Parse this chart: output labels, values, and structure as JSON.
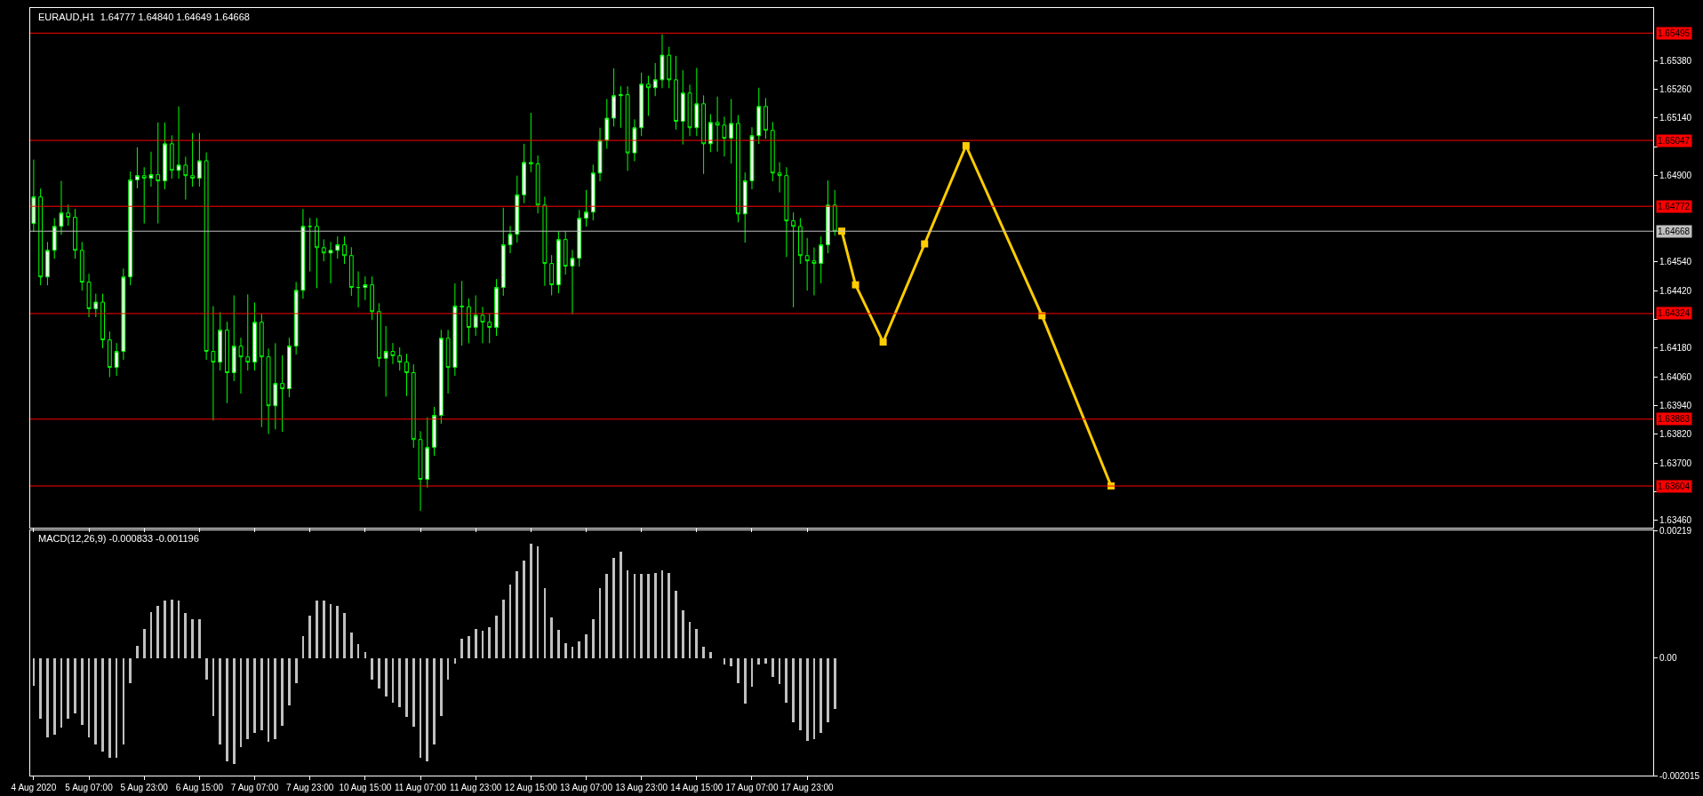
{
  "chart_data": [
    {
      "type": "candlestick",
      "title": "EURAUD,H1  1.64777 1.64840 1.64649 1.64668",
      "color": "#00ff00",
      "tick_labels": "y",
      "categories": [
        "4 Aug 2020",
        null,
        null,
        null,
        null,
        null,
        null,
        null,
        "5 Aug 07:00",
        null,
        null,
        null,
        null,
        null,
        null,
        null,
        "5 Aug 23:00",
        null,
        null,
        null,
        null,
        null,
        null,
        null,
        "6 Aug 15:00",
        null,
        null,
        null,
        null,
        null,
        null,
        null,
        "7 Aug 07:00",
        null,
        null,
        null,
        null,
        null,
        null,
        null,
        "7 Aug 23:00",
        null,
        null,
        null,
        null,
        null,
        null,
        null,
        "10 Aug 15:00",
        null,
        null,
        null,
        null,
        null,
        null,
        null,
        "11 Aug 07:00",
        null,
        null,
        null,
        null,
        null,
        null,
        null,
        "11 Aug 23:00",
        null,
        null,
        null,
        null,
        null,
        null,
        null,
        "12 Aug 15:00",
        null,
        null,
        null,
        null,
        null,
        null,
        null,
        "13 Aug 07:00",
        null,
        null,
        null,
        null,
        null,
        null,
        null,
        "13 Aug 23:00",
        null,
        null,
        null,
        null,
        null,
        null,
        null,
        "14 Aug 15:00",
        null,
        null,
        null,
        null,
        null,
        null,
        null,
        "17 Aug 07:00",
        null,
        null,
        null,
        null,
        null,
        null,
        null,
        "17 Aug 23:00",
        null,
        null,
        null,
        null,
        null,
        null,
        null,
        null,
        null,
        null,
        null,
        null,
        null,
        null,
        null,
        null,
        null,
        null,
        null,
        null,
        null,
        null,
        null,
        null,
        null,
        null,
        null,
        null,
        null,
        null,
        null,
        null,
        null,
        null,
        null,
        null,
        null,
        null,
        null,
        null,
        null,
        null,
        null,
        null,
        null,
        null,
        null,
        null,
        null,
        null,
        null,
        null,
        null,
        null,
        null,
        null,
        null,
        null,
        null,
        null,
        null,
        null,
        null,
        null,
        null,
        null,
        null,
        null,
        null,
        null,
        null,
        null,
        null,
        null,
        null,
        null,
        null,
        null,
        null,
        null,
        null,
        null,
        null,
        null,
        null,
        null,
        null,
        null,
        null,
        null,
        null,
        null,
        null,
        null,
        null,
        null,
        null,
        null,
        null,
        null,
        null,
        null,
        null,
        null,
        null,
        null,
        null,
        null,
        null,
        null,
        null,
        null,
        null,
        null,
        null,
        null,
        null,
        null,
        null,
        null,
        null,
        null
      ],
      "ylim": [
        1.6343,
        1.656
      ],
      "yticks": [
        {
          "value": 1.6538,
          "label": "1.65380"
        },
        {
          "value": 1.6526,
          "label": "1.65260"
        },
        {
          "value": 1.6514,
          "label": "1.65140"
        },
        {
          "value": 1.6502,
          "label": null
        },
        {
          "value": 1.649,
          "label": "1.64900"
        },
        {
          "value": 1.6454,
          "label": "1.64540"
        },
        {
          "value": 1.6442,
          "label": "1.64420"
        },
        {
          "value": 1.643,
          "label": null
        },
        {
          "value": 1.6418,
          "label": "1.64180"
        },
        {
          "value": 1.6406,
          "label": "1.64060"
        },
        {
          "value": 1.6394,
          "label": "1.63940"
        },
        {
          "value": 1.6382,
          "label": "1.63820"
        },
        {
          "value": 1.637,
          "label": "1.63700"
        },
        {
          "value": 1.6358,
          "label": null
        },
        {
          "value": 1.6346,
          "label": "1.63460"
        }
      ],
      "ohlc": [
        [
          1.647,
          1.64967,
          1.64665,
          1.64811
        ],
        [
          1.64811,
          1.64846,
          1.64442,
          1.64477
        ],
        [
          1.64477,
          1.64623,
          1.64442,
          1.64588
        ],
        [
          1.64588,
          1.64723,
          1.64553,
          1.64688
        ],
        [
          1.64688,
          1.64878,
          1.64653,
          1.64744
        ],
        [
          1.64744,
          1.64779,
          1.64691,
          1.64726
        ],
        [
          1.64726,
          1.64761,
          1.64553,
          1.64588
        ],
        [
          1.64588,
          1.64623,
          1.6442,
          1.64455
        ],
        [
          1.64455,
          1.6449,
          1.64309,
          1.64344
        ],
        [
          1.64344,
          1.64407,
          1.64309,
          1.64372
        ],
        [
          1.64372,
          1.64407,
          1.64179,
          1.64214
        ],
        [
          1.64214,
          1.64249,
          1.64059,
          1.64099
        ],
        [
          1.64099,
          1.64201,
          1.64064,
          1.64166
        ],
        [
          1.64166,
          1.64512,
          1.64131,
          1.64477
        ],
        [
          1.64477,
          1.64917,
          1.64442,
          1.64882
        ],
        [
          1.64882,
          1.65018,
          1.64847,
          1.649
        ],
        [
          1.649,
          1.64935,
          1.647,
          1.64889
        ],
        [
          1.64889,
          1.65,
          1.64854,
          1.64904
        ],
        [
          1.64904,
          1.65122,
          1.647,
          1.64878
        ],
        [
          1.64878,
          1.65122,
          1.64843,
          1.65033
        ],
        [
          1.65033,
          1.65068,
          1.64887,
          1.64922
        ],
        [
          1.64922,
          1.65189,
          1.64887,
          1.64944
        ],
        [
          1.64944,
          1.64979,
          1.648,
          1.649
        ],
        [
          1.649,
          1.65078,
          1.64854,
          1.64889
        ],
        [
          1.64889,
          1.65078,
          1.64854,
          1.64962
        ],
        [
          1.64962,
          1.64997,
          1.64131,
          1.64166
        ],
        [
          1.64166,
          1.64355,
          1.63877,
          1.64121
        ],
        [
          1.64121,
          1.6433,
          1.64086,
          1.64255
        ],
        [
          1.64255,
          1.6429,
          1.6395,
          1.64077
        ],
        [
          1.64077,
          1.644,
          1.64042,
          1.64188
        ],
        [
          1.64188,
          1.64223,
          1.6399,
          1.64143
        ],
        [
          1.64143,
          1.64404,
          1.64086,
          1.64121
        ],
        [
          1.64121,
          1.6437,
          1.64086,
          1.64288
        ],
        [
          1.64288,
          1.64323,
          1.6385,
          1.64143
        ],
        [
          1.64143,
          1.64178,
          1.63821,
          1.63939
        ],
        [
          1.63939,
          1.642,
          1.6384,
          1.64032
        ],
        [
          1.64032,
          1.6415,
          1.6383,
          1.6401
        ],
        [
          1.6401,
          1.64223,
          1.63975,
          1.64188
        ],
        [
          1.64188,
          1.64456,
          1.64153,
          1.64421
        ],
        [
          1.64421,
          1.6476,
          1.64386,
          1.64688
        ],
        [
          1.64688,
          1.64723,
          1.645,
          1.64688
        ],
        [
          1.64688,
          1.64723,
          1.6443,
          1.64599
        ],
        [
          1.64599,
          1.64634,
          1.64542,
          1.64577
        ],
        [
          1.64577,
          1.64623,
          1.6445,
          1.64588
        ],
        [
          1.64588,
          1.64646,
          1.64553,
          1.64611
        ],
        [
          1.64611,
          1.64646,
          1.64531,
          1.64566
        ],
        [
          1.64566,
          1.64601,
          1.64398,
          1.64433
        ],
        [
          1.64433,
          1.645,
          1.6435,
          1.64433
        ],
        [
          1.64433,
          1.64479,
          1.6438,
          1.64444
        ],
        [
          1.64444,
          1.64479,
          1.64297,
          1.64332
        ],
        [
          1.64332,
          1.64367,
          1.64102,
          1.64137
        ],
        [
          1.64137,
          1.64272,
          1.63977,
          1.64166
        ],
        [
          1.64166,
          1.64201,
          1.64113,
          1.64148
        ],
        [
          1.64148,
          1.64183,
          1.64086,
          1.64121
        ],
        [
          1.64121,
          1.64156,
          1.6398,
          1.64077
        ],
        [
          1.64077,
          1.64112,
          1.63763,
          1.63798
        ],
        [
          1.63798,
          1.63833,
          1.635,
          1.63632
        ],
        [
          1.63632,
          1.6389,
          1.63597,
          1.63765
        ],
        [
          1.63765,
          1.63934,
          1.6373,
          1.63899
        ],
        [
          1.63899,
          1.64256,
          1.63864,
          1.64221
        ],
        [
          1.64221,
          1.64256,
          1.6399,
          1.64099
        ],
        [
          1.64099,
          1.6445,
          1.64064,
          1.64355
        ],
        [
          1.64355,
          1.6446,
          1.6419,
          1.64352
        ],
        [
          1.64352,
          1.64387,
          1.642,
          1.64266
        ],
        [
          1.64266,
          1.644,
          1.64231,
          1.64317
        ],
        [
          1.64317,
          1.64352,
          1.642,
          1.64288
        ],
        [
          1.64288,
          1.64323,
          1.642,
          1.64266
        ],
        [
          1.64266,
          1.64468,
          1.64231,
          1.64433
        ],
        [
          1.64433,
          1.64766,
          1.64398,
          1.64611
        ],
        [
          1.64611,
          1.6469,
          1.64576,
          1.64655
        ],
        [
          1.64655,
          1.649,
          1.6462,
          1.6482
        ],
        [
          1.6482,
          1.65033,
          1.64785,
          1.64955
        ],
        [
          1.64955,
          1.65162,
          1.64914,
          1.64949
        ],
        [
          1.64949,
          1.64984,
          1.64742,
          1.64777
        ],
        [
          1.64777,
          1.64812,
          1.6444,
          1.64533
        ],
        [
          1.64533,
          1.64568,
          1.644,
          1.64444
        ],
        [
          1.64444,
          1.64668,
          1.64409,
          1.64633
        ],
        [
          1.64633,
          1.64668,
          1.64487,
          1.64522
        ],
        [
          1.64522,
          1.6459,
          1.64321,
          1.64555
        ],
        [
          1.64555,
          1.64757,
          1.6452,
          1.64722
        ],
        [
          1.64722,
          1.6484,
          1.64687,
          1.64748
        ],
        [
          1.64748,
          1.64946,
          1.64713,
          1.64911
        ],
        [
          1.64911,
          1.651,
          1.64876,
          1.65047
        ],
        [
          1.65047,
          1.6522,
          1.65012,
          1.6514
        ],
        [
          1.6514,
          1.65348,
          1.65105,
          1.65234
        ],
        [
          1.65234,
          1.65273,
          1.651,
          1.65238
        ],
        [
          1.65238,
          1.65273,
          1.6492,
          1.64995
        ],
        [
          1.64995,
          1.65135,
          1.6496,
          1.651
        ],
        [
          1.651,
          1.6533,
          1.65065,
          1.65282
        ],
        [
          1.65282,
          1.65317,
          1.6515,
          1.65267
        ],
        [
          1.65267,
          1.6537,
          1.65232,
          1.653
        ],
        [
          1.653,
          1.6549,
          1.65265,
          1.65403
        ],
        [
          1.65403,
          1.65438,
          1.65265,
          1.653
        ],
        [
          1.653,
          1.654,
          1.65092,
          1.65127
        ],
        [
          1.65127,
          1.6534,
          1.6503,
          1.65245
        ],
        [
          1.65245,
          1.6528,
          1.65065,
          1.651
        ],
        [
          1.651,
          1.6535,
          1.65065,
          1.652
        ],
        [
          1.652,
          1.65235,
          1.64907,
          1.65033
        ],
        [
          1.65033,
          1.65157,
          1.64998,
          1.65122
        ],
        [
          1.65122,
          1.6523,
          1.65,
          1.65111
        ],
        [
          1.65111,
          1.65146,
          1.6498,
          1.65056
        ],
        [
          1.65056,
          1.6522,
          1.6495,
          1.65118
        ],
        [
          1.65118,
          1.65153,
          1.64705,
          1.6474
        ],
        [
          1.6474,
          1.64913,
          1.6462,
          1.64878
        ],
        [
          1.64878,
          1.65102,
          1.64843,
          1.65067
        ],
        [
          1.65067,
          1.65267,
          1.65032,
          1.65189
        ],
        [
          1.65189,
          1.65224,
          1.65054,
          1.65089
        ],
        [
          1.65089,
          1.65124,
          1.64876,
          1.64911
        ],
        [
          1.64911,
          1.64956,
          1.6483,
          1.649
        ],
        [
          1.649,
          1.64935,
          1.6456,
          1.64711
        ],
        [
          1.64711,
          1.64746,
          1.6435,
          1.64688
        ],
        [
          1.64688,
          1.64723,
          1.64531,
          1.64566
        ],
        [
          1.64566,
          1.6464,
          1.6442,
          1.64544
        ],
        [
          1.64544,
          1.646,
          1.644,
          1.64533
        ],
        [
          1.64533,
          1.64646,
          1.6445,
          1.64611
        ],
        [
          1.64611,
          1.6488,
          1.64576,
          1.64777
        ],
        [
          1.64777,
          1.6484,
          1.64649,
          1.64668
        ],
        null,
        null,
        null,
        null,
        null,
        null,
        null,
        null,
        null,
        null,
        null,
        null,
        null,
        null,
        null,
        null,
        null,
        null,
        null,
        null,
        null,
        null,
        null,
        null,
        null,
        null,
        null,
        null,
        null,
        null,
        null,
        null,
        null,
        null,
        null,
        null,
        null,
        null,
        null,
        null,
        null,
        null,
        null,
        null,
        null,
        null,
        null,
        null,
        null,
        null,
        null,
        null,
        null,
        null,
        null,
        null,
        null,
        null,
        null,
        null,
        null,
        null,
        null,
        null,
        null,
        null,
        null,
        null,
        null,
        null,
        null,
        null,
        null,
        null,
        null,
        null,
        null,
        null,
        null,
        null,
        null,
        null,
        null,
        null,
        null,
        null,
        null,
        null,
        null,
        null,
        null,
        null,
        null,
        null,
        null,
        null,
        null,
        null,
        null,
        null,
        null,
        null,
        null,
        null,
        null,
        null,
        null,
        null,
        null,
        null,
        null,
        null,
        null,
        null,
        null,
        null,
        null,
        null
      ],
      "series": [
        {
          "type": "line",
          "color": "#ffcc00",
          "marker": "square",
          "line_style": "solid",
          "values": [
            null,
            null,
            null,
            null,
            null,
            null,
            null,
            null,
            null,
            null,
            null,
            null,
            null,
            null,
            null,
            null,
            null,
            null,
            null,
            null,
            null,
            null,
            null,
            null,
            null,
            null,
            null,
            null,
            null,
            null,
            null,
            null,
            null,
            null,
            null,
            null,
            null,
            null,
            null,
            null,
            null,
            null,
            null,
            null,
            null,
            null,
            null,
            null,
            null,
            null,
            null,
            null,
            null,
            null,
            null,
            null,
            null,
            null,
            null,
            null,
            null,
            null,
            null,
            null,
            null,
            null,
            null,
            null,
            null,
            null,
            null,
            null,
            null,
            null,
            null,
            null,
            null,
            null,
            null,
            null,
            null,
            null,
            null,
            null,
            null,
            null,
            null,
            null,
            null,
            null,
            null,
            null,
            null,
            null,
            null,
            null,
            null,
            null,
            null,
            null,
            null,
            null,
            null,
            null,
            null,
            null,
            null,
            null,
            null,
            null,
            null,
            null,
            null,
            null,
            null,
            null,
            null,
            1.64668,
            null,
            1.64444,
            null,
            null,
            null,
            1.64205,
            null,
            null,
            null,
            null,
            null,
            1.64615,
            null,
            null,
            null,
            null,
            null,
            1.65025,
            null,
            null,
            null,
            null,
            null,
            null,
            null,
            null,
            null,
            null,
            1.64315,
            null,
            null,
            null,
            null,
            null,
            null,
            null,
            null,
            null,
            1.63604,
            null,
            null,
            null,
            null,
            null,
            null,
            null,
            null,
            null,
            null,
            null,
            null,
            null,
            null,
            null,
            null,
            null,
            null,
            null,
            null,
            null,
            null,
            null,
            null,
            null,
            null,
            null,
            null,
            null,
            null,
            null,
            null,
            null,
            null,
            null,
            null,
            null,
            null,
            null,
            null,
            null,
            null,
            null,
            null,
            null,
            null,
            null,
            null,
            null,
            null,
            null,
            null,
            null,
            null,
            null,
            null,
            null,
            null,
            null,
            null,
            null,
            null,
            null,
            null,
            null,
            null,
            null,
            null,
            null,
            null,
            null,
            null,
            null,
            null,
            null,
            null,
            null,
            null
          ]
        }
      ],
      "ref_lines": [
        {
          "axis": "y",
          "value": 1.65495,
          "label": "1.65495",
          "color": "#ff0000"
        },
        {
          "axis": "y",
          "value": 1.65047,
          "label": "1.65047",
          "color": "#ff0000"
        },
        {
          "axis": "y",
          "value": 1.64772,
          "label": "1.64772",
          "color": "#ff0000"
        },
        {
          "axis": "y",
          "value": 1.64668,
          "label": "1.64668",
          "color": "#c0c0c0"
        },
        {
          "axis": "y",
          "value": 1.64324,
          "label": "1.64324",
          "color": "#ff0000"
        },
        {
          "axis": "y",
          "value": 1.63883,
          "label": "1.63883",
          "color": "#ff0000"
        },
        {
          "axis": "y",
          "value": 1.63604,
          "label": "1.63604",
          "color": "#ff0000"
        }
      ]
    },
    {
      "type": "bar",
      "title": "MACD(12,26,9) -0.000833 -0.001196",
      "color": "#c0c0c0",
      "ylim": [
        -0.002015,
        0.00219
      ],
      "yticks": [
        {
          "value": 0.00219,
          "label": "0.00219"
        },
        {
          "value": 0,
          "label": "0.00"
        },
        {
          "value": -0.002015,
          "label": "-0.002015"
        }
      ],
      "categories": [
        "4 Aug 2020",
        null,
        null,
        null,
        null,
        null,
        null,
        null,
        "5 Aug 07:00",
        null,
        null,
        null,
        null,
        null,
        null,
        null,
        "5 Aug 23:00",
        null,
        null,
        null,
        null,
        null,
        null,
        null,
        "6 Aug 15:00",
        null,
        null,
        null,
        null,
        null,
        null,
        null,
        "7 Aug 07:00",
        null,
        null,
        null,
        null,
        null,
        null,
        null,
        "7 Aug 23:00",
        null,
        null,
        null,
        null,
        null,
        null,
        null,
        "10 Aug 15:00",
        null,
        null,
        null,
        null,
        null,
        null,
        null,
        "11 Aug 07:00",
        null,
        null,
        null,
        null,
        null,
        null,
        null,
        "11 Aug 23:00",
        null,
        null,
        null,
        null,
        null,
        null,
        null,
        "12 Aug 15:00",
        null,
        null,
        null,
        null,
        null,
        null,
        null,
        "13 Aug 07:00",
        null,
        null,
        null,
        null,
        null,
        null,
        null,
        "13 Aug 23:00",
        null,
        null,
        null,
        null,
        null,
        null,
        null,
        "14 Aug 15:00",
        null,
        null,
        null,
        null,
        null,
        null,
        null,
        "17 Aug 07:00",
        null,
        null,
        null,
        null,
        null,
        null,
        null,
        "17 Aug 23:00",
        null,
        null,
        null,
        null,
        null,
        null,
        null,
        null,
        null,
        null,
        null,
        null,
        null,
        null,
        null,
        null,
        null,
        null,
        null,
        null,
        null,
        null,
        null,
        null,
        null,
        null,
        null,
        null,
        null,
        null,
        null,
        null,
        null,
        null,
        null,
        null,
        null,
        null,
        null,
        null,
        null,
        null,
        null,
        null,
        null,
        null,
        null,
        null,
        null,
        null,
        null,
        null,
        null,
        null,
        null,
        null,
        null,
        null,
        null,
        null,
        null,
        null,
        null,
        null,
        null,
        null,
        null,
        null,
        null,
        null,
        null,
        null,
        null,
        null,
        null,
        null,
        null,
        null,
        null,
        null,
        null,
        null,
        null,
        null,
        null,
        null,
        null,
        null,
        null,
        null,
        null,
        null,
        null,
        null,
        null,
        null,
        null,
        null,
        null,
        null,
        null,
        null,
        null,
        null,
        null,
        null,
        null,
        null,
        null,
        null,
        null,
        null,
        null,
        null,
        null,
        null,
        null,
        null,
        null,
        null,
        null,
        null
      ],
      "values": [
        -0.00048,
        -0.00105,
        -0.00137,
        -0.00132,
        -0.0012,
        -0.00105,
        -0.00096,
        -0.00115,
        -0.00136,
        -0.00148,
        -0.00161,
        -0.00172,
        -0.00172,
        -0.00148,
        -0.00043,
        0.00021,
        0.0005,
        0.00078,
        0.00089,
        0.00099,
        0.001,
        0.00098,
        0.00077,
        0.00067,
        0.00067,
        -0.00038,
        -0.001,
        -0.00148,
        -0.00177,
        -0.00182,
        -0.00153,
        -0.00139,
        -0.00129,
        -0.00124,
        -0.00144,
        -0.00139,
        -0.00117,
        -0.00081,
        -0.00043,
        0.00038,
        0.00072,
        0.00098,
        0.00098,
        0.00093,
        0.00089,
        0.00077,
        0.00043,
        0.00024,
        0.0001,
        -0.00038,
        -0.00053,
        -0.00067,
        -0.00077,
        -0.00084,
        -0.00101,
        -0.00118,
        -0.00172,
        -0.00177,
        -0.00148,
        -0.001,
        -0.00038,
        -0.0001,
        0.00033,
        0.00038,
        0.0005,
        0.00046,
        0.00053,
        0.00072,
        0.001,
        0.00126,
        0.00149,
        0.00167,
        0.00196,
        0.00191,
        0.0012,
        0.00069,
        0.00048,
        0.00025,
        0.00019,
        0.00029,
        0.00041,
        0.00067,
        0.0012,
        0.00144,
        0.00172,
        0.00182,
        0.0015,
        0.00144,
        0.00145,
        0.00145,
        0.00146,
        0.00151,
        0.00146,
        0.00115,
        0.00081,
        0.00062,
        0.0005,
        0.00019,
        0.0001,
        0.0,
        -0.00011,
        -0.00014,
        -0.00043,
        -0.00079,
        -0.0005,
        -0.00011,
        -0.0001,
        -0.00032,
        -0.00045,
        -0.00077,
        -0.0011,
        -0.00124,
        -0.00142,
        -0.0014,
        -0.00129,
        -0.0011,
        -0.00088,
        null,
        null,
        null,
        null,
        null,
        null,
        null,
        null,
        null,
        null,
        null,
        null,
        null,
        null,
        null,
        null,
        null,
        null,
        null,
        null,
        null,
        null,
        null,
        null,
        null,
        null,
        null,
        null,
        null,
        null,
        null,
        null,
        null,
        null,
        null,
        null,
        null,
        null,
        null,
        null,
        null,
        null,
        null,
        null,
        null,
        null,
        null,
        null,
        null,
        null,
        null,
        null,
        null,
        null,
        null,
        null,
        null,
        null,
        null,
        null,
        null,
        null,
        null,
        null,
        null,
        null,
        null,
        null,
        null,
        null,
        null,
        null,
        null,
        null,
        null,
        null,
        null,
        null,
        null,
        null,
        null,
        null,
        null,
        null,
        null,
        null,
        null,
        null,
        null,
        null,
        null,
        null,
        null,
        null,
        null,
        null,
        null,
        null,
        null,
        null,
        null,
        null,
        null,
        null,
        null,
        null,
        null,
        null,
        null,
        null,
        null,
        null,
        null,
        null,
        null,
        null,
        null,
        null
      ]
    }
  ]
}
